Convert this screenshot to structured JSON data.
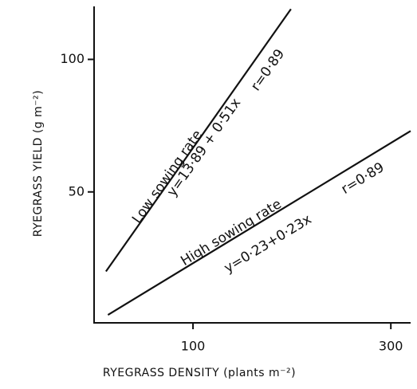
{
  "chart_data": {
    "type": "line",
    "x_label": "RYEGRASS  DENSITY  (plants  m⁻²)",
    "y_label": "RYEGRASS  YIELD  (g  m⁻²)",
    "xlim": [
      0,
      320
    ],
    "xticks": [
      100,
      300
    ],
    "ylim": [
      0,
      120
    ],
    "yticks": [
      50,
      100
    ],
    "series": [
      {
        "name": "Low  sowing  rate",
        "color": "#111111",
        "equation": "y=13·89 + 0·51x",
        "r": "r=0·89",
        "x": [
          12,
          199
        ],
        "y": [
          20,
          119
        ]
      },
      {
        "name": "High  sowing  rate",
        "color": "#111111",
        "equation": "y=0·23+0·23x",
        "r": "r=0·89",
        "x": [
          14,
          320
        ],
        "y": [
          3.6,
          73
        ]
      }
    ]
  }
}
